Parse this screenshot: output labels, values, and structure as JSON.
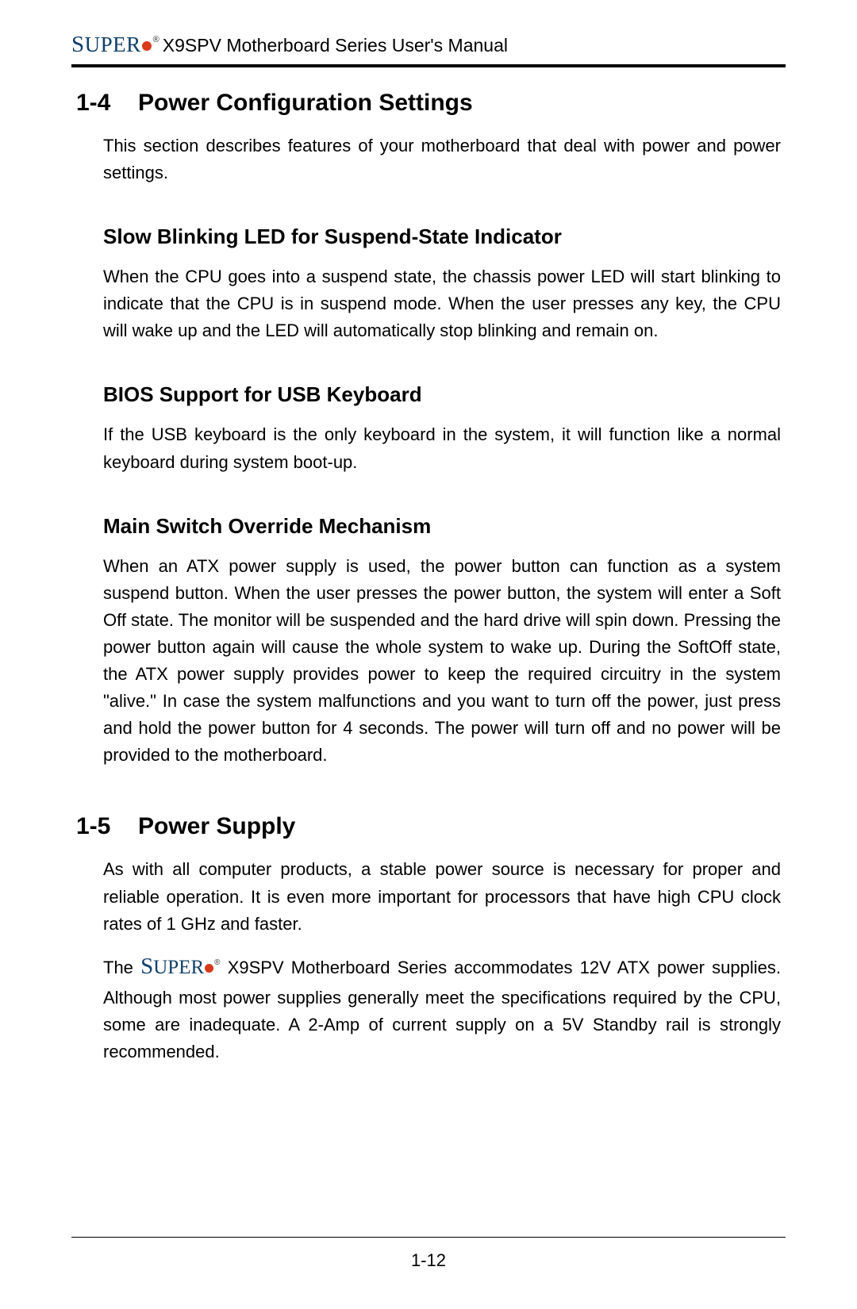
{
  "header": {
    "brand_text": "Super",
    "title": "X9SPV Motherboard Series User's Manual"
  },
  "colors": {
    "brand_blue": "#10406a",
    "brand_dot": "#d83a1a",
    "text": "#000000",
    "background": "#ffffff"
  },
  "typography": {
    "heading_fontsize_pt": 22,
    "subheading_fontsize_pt": 19,
    "body_fontsize_pt": 16,
    "font_family": "Arial"
  },
  "sections": [
    {
      "number": "1-4",
      "title": "Power Configuration Settings",
      "intro": "This section describes features of your motherboard that deal with power and power settings.",
      "subsections": [
        {
          "title": "Slow Blinking LED for Suspend-State Indicator",
          "body": "When the CPU goes into a suspend state, the chassis power LED will start blinking to indicate that the CPU is in suspend mode. When the user presses any key, the CPU will wake up and the LED will automatically stop blinking and remain on."
        },
        {
          "title": "BIOS Support for USB Keyboard",
          "body": "If the USB keyboard is the only keyboard in the system, it will function like a normal keyboard during system boot-up."
        },
        {
          "title": "Main Switch Override Mechanism",
          "body": "When an ATX power supply is used, the power button can function as a system suspend button. When the user presses the power button, the system will enter a Soft Off state. The monitor will be suspended and the hard drive will spin down. Pressing the power button again will cause the whole system to wake up. During the SoftOff state, the ATX power supply provides power to keep the required circuitry in the system \"alive.\" In case the system malfunctions and you want to turn off the power, just press and hold the power button for 4 seconds. The power will turn off and no power will be provided to the motherboard."
        }
      ]
    },
    {
      "number": "1-5",
      "title": "Power Supply",
      "paragraphs": [
        "As with all computer products, a stable power source is necessary for proper and reliable operation. It is even more important for processors that have high CPU clock rates of 1 GHz and faster.",
        {
          "prefix": "The ",
          "brand": true,
          "suffix": " X9SPV Motherboard Series accommodates 12V ATX power supplies. Although most power supplies generally meet the specifications required by the CPU, some are inadequate. A 2-Amp of current supply on a 5V Standby rail is strongly recommended."
        }
      ]
    }
  ],
  "page_number": "1-12"
}
